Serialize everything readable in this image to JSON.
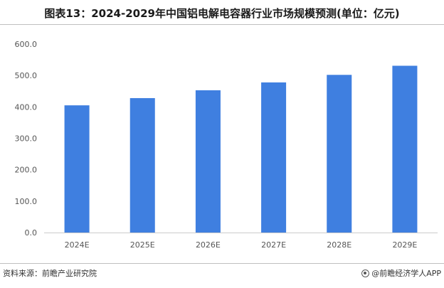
{
  "header": {
    "title": "图表13：2024-2029年中国铝电解电容器行业市场规模预测(单位：亿元)"
  },
  "footer": {
    "source": "资料来源：前瞻产业研究院",
    "brand": "@前瞻经济学人APP"
  },
  "colors": {
    "bar": "#3f7fe0",
    "axis": "#cccccc",
    "tick_text": "#555555"
  },
  "chart_data": {
    "type": "bar",
    "title": "图表13：2024-2029年中国铝电解电容器行业市场规模预测(单位：亿元)",
    "categories": [
      "2024E",
      "2025E",
      "2026E",
      "2027E",
      "2028E",
      "2029E"
    ],
    "values": [
      405,
      428,
      453,
      478,
      502,
      531
    ],
    "yticks": [
      "0.0",
      "100.0",
      "200.0",
      "300.0",
      "400.0",
      "500.0",
      "600.0"
    ],
    "ylim": [
      0,
      600
    ],
    "xlabel": "",
    "ylabel": "",
    "grid": false,
    "legend": "none"
  }
}
